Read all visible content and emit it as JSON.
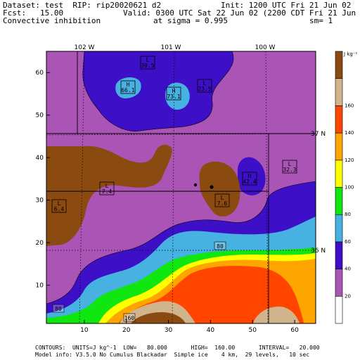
{
  "header": {
    "line1_left": "Dataset: test  RIP: rip20020621 d2",
    "line1_right": "Init: 1200 UTC Fri 21 Jun 02",
    "line2_left": "Fcst:   15.00",
    "line2_right": "Valid: 0300 UTC Sat 22 Jun 02 (2200 CDT Fri 21 Jun 02)",
    "line3_left": "Convective inhibition",
    "line3_mid": "at sigma = 0.995",
    "line3_right": "sm= 1"
  },
  "footer": {
    "line1": "CONTOURS:  UNITS=J kg^-1  LOW=   80.000       HIGH=  160.00       INTERVAL=   20.000",
    "line2": "Model info: V3.5.0 No Cumulus Blackadar  Simple ice    4 km,  29 levels,   10 sec"
  },
  "colorbar": {
    "units": "J kg⁻¹",
    "levels": [
      {
        "label": "",
        "color": "#ffffff"
      },
      {
        "label": "20",
        "color": "#aa55b6"
      },
      {
        "label": "40",
        "color": "#3d10c8"
      },
      {
        "label": "60",
        "color": "#47b1e2"
      },
      {
        "label": "80",
        "color": "#10e610"
      },
      {
        "label": "100",
        "color": "#ffff00"
      },
      {
        "label": "120",
        "color": "#ffa500"
      },
      {
        "label": "140",
        "color": "#ff4500"
      },
      {
        "label": "160",
        "color": "#d2b48c"
      },
      {
        "label": "",
        "color": "#8b4a10"
      }
    ]
  },
  "axes": {
    "left_ticks": [
      "10",
      "20",
      "30",
      "40",
      "50",
      "60"
    ],
    "bottom_ticks": [
      "10",
      "20",
      "30",
      "40",
      "50",
      "60"
    ],
    "top_longitudes": [
      "102 W",
      "101 W",
      "100 W"
    ],
    "right_latitudes": [
      "37 N",
      "36 N"
    ]
  },
  "markers": [
    {
      "type": "L",
      "value": "39.5"
    },
    {
      "type": "H",
      "value": "66.1"
    },
    {
      "type": "H",
      "value": "73.1"
    },
    {
      "type": "L",
      "value": "23.5"
    },
    {
      "type": "L",
      "value": "32.3"
    },
    {
      "type": "H",
      "value": "42.4"
    },
    {
      "type": "L",
      "value": "7.4"
    },
    {
      "type": "L",
      "value": "6.4"
    },
    {
      "type": "L",
      "value": "7.6"
    }
  ],
  "contour_labels": [
    "80",
    "80",
    "160"
  ],
  "colors": {
    "purple": "#aa55b6",
    "blue": "#3d10c8",
    "cyan": "#47b1e2",
    "green": "#10e610",
    "yellow": "#ffff00",
    "orange": "#ffa500",
    "red_orange": "#ff4500",
    "tan": "#d2b48c",
    "brown": "#8b4a10"
  }
}
